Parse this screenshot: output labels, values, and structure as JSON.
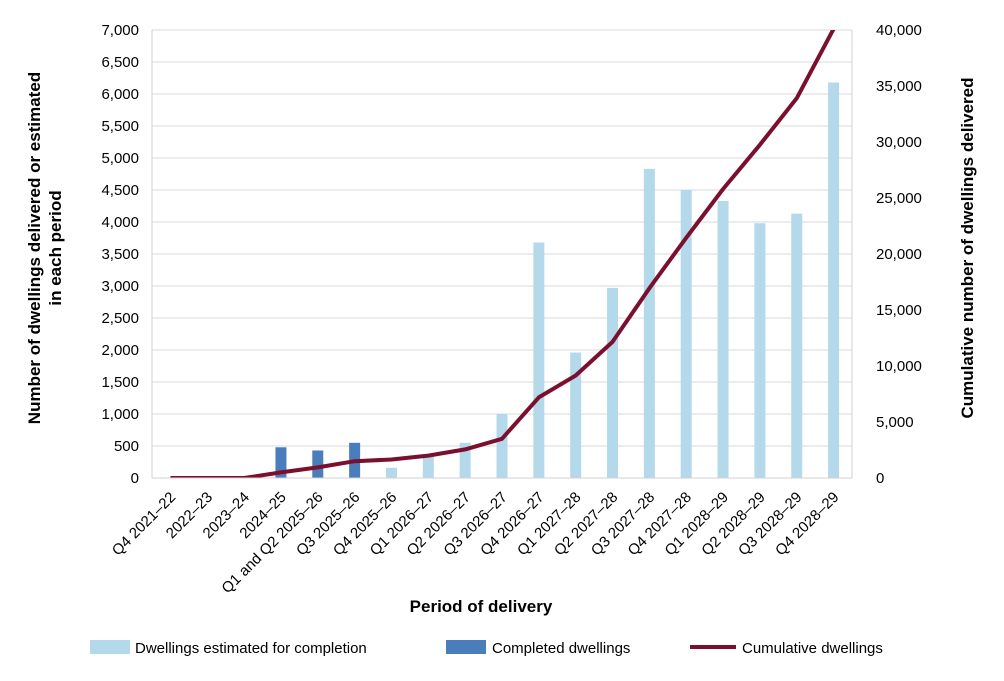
{
  "chart_data": {
    "type": "bar",
    "categories": [
      "Q4 2021–22",
      "2022–23",
      "2023–24",
      "2024–25",
      "Q1 and Q2 2025–26",
      "Q3 2025–26",
      "Q4 2025–26",
      "Q1 2026–27",
      "Q2 2026–27",
      "Q3 2026–27",
      "Q4 2026–27",
      "Q1 2027–28",
      "Q2 2027–28",
      "Q3 2027–28",
      "Q4 2027–28",
      "Q1 2028–29",
      "Q2 2028–29",
      "Q3 2028–29",
      "Q4 2028–29"
    ],
    "series": [
      {
        "name": "Dwellings estimated for completion",
        "type": "bar",
        "axis": "left",
        "color": "#b4d9eb",
        "values": [
          0,
          0,
          0,
          0,
          0,
          0,
          160,
          330,
          550,
          1000,
          3680,
          1960,
          2970,
          4830,
          4500,
          4330,
          3980,
          4130,
          6180
        ]
      },
      {
        "name": "Completed dwellings",
        "type": "bar",
        "axis": "left",
        "color": "#4a7ebb",
        "values": [
          0,
          0,
          0,
          480,
          430,
          550,
          0,
          0,
          0,
          0,
          0,
          0,
          0,
          0,
          0,
          0,
          0,
          0,
          0
        ]
      },
      {
        "name": "Cumulative dwellings",
        "type": "line",
        "axis": "right",
        "color": "#7b0f2e",
        "values": [
          0,
          0,
          0,
          500,
          950,
          1500,
          1650,
          2000,
          2550,
          3500,
          7200,
          9150,
          12150,
          16950,
          21450,
          25800,
          29750,
          33900,
          40100
        ]
      }
    ],
    "xlabel": "Period of delivery",
    "ylabel": "Number of dwellings delivered or estimated in each period",
    "ylabel_lines": [
      "Number of dwellings delivered or estimated",
      "in each period"
    ],
    "y2label": "Cumulative number of dwellings delivered",
    "ylim": [
      0,
      7000
    ],
    "yticks": [
      0,
      500,
      1000,
      1500,
      2000,
      2500,
      3000,
      3500,
      4000,
      4500,
      5000,
      5500,
      6000,
      6500,
      7000
    ],
    "ytick_labels": [
      "0",
      "500",
      "1,000",
      "1,500",
      "2,000",
      "2,500",
      "3,000",
      "3,500",
      "4,000",
      "4,500",
      "5,000",
      "5,500",
      "6,000",
      "6,500",
      "7,000"
    ],
    "y2lim": [
      0,
      40000
    ],
    "y2ticks": [
      0,
      5000,
      10000,
      15000,
      20000,
      25000,
      30000,
      35000,
      40000
    ],
    "y2tick_labels": [
      "0",
      "5,000",
      "10,000",
      "15,000",
      "20,000",
      "25,000",
      "30,000",
      "35,000",
      "40,000"
    ],
    "grid": true,
    "legend_position": "bottom"
  }
}
